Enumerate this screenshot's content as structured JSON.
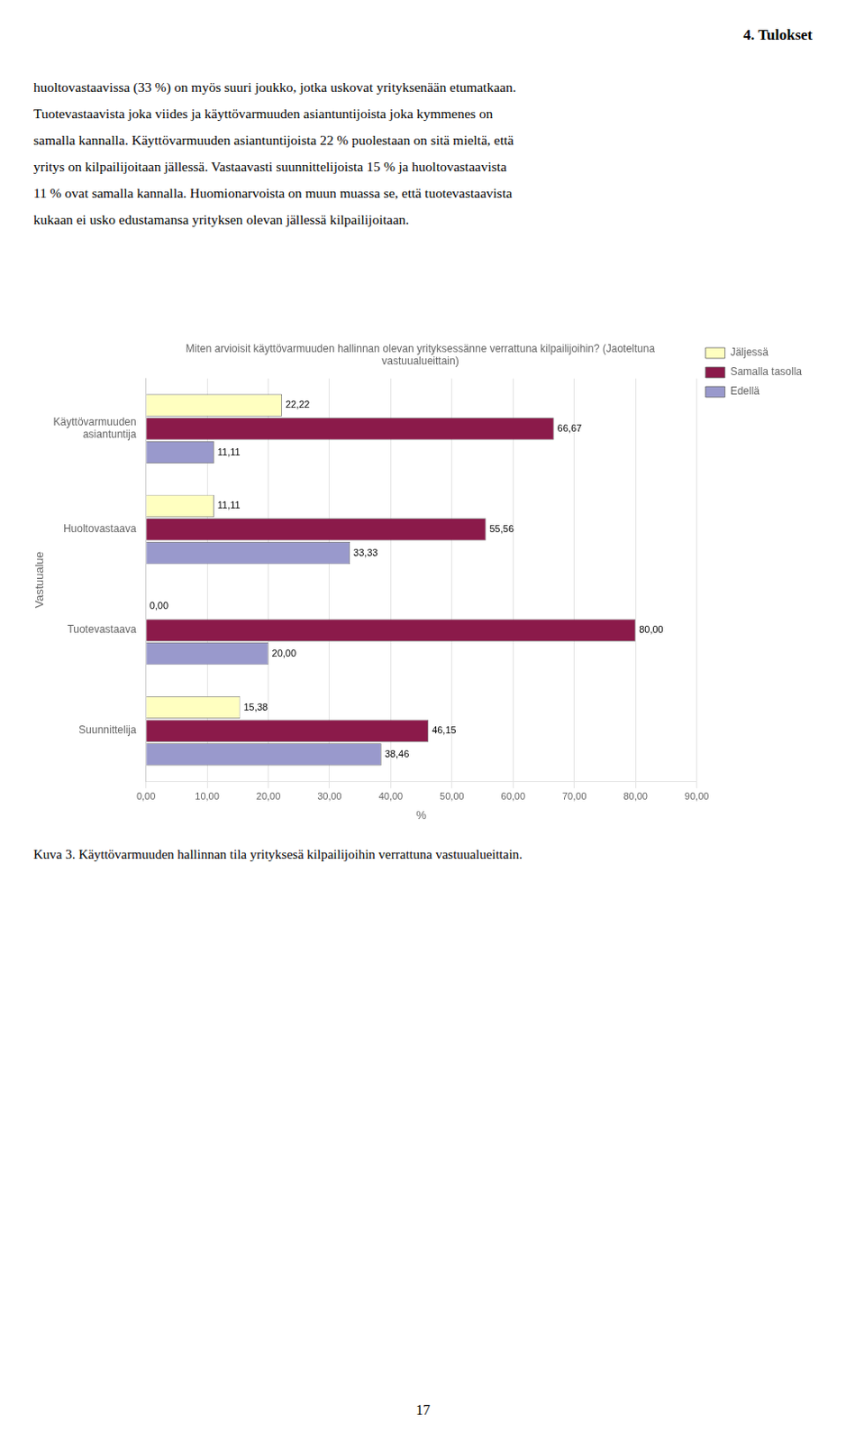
{
  "heading": "4. Tulokset",
  "body_lines": [
    "huoltovastaavissa (33 %) on myös suuri joukko, jotka uskovat yrityksenään etumatkaan.",
    "Tuotevastaavista joka viides ja käyttövarmuuden asiantuntijoista joka kymmenes on",
    "samalla kannalla. Käyttövarmuuden asiantuntijoista 22 % puolestaan on sitä mieltä, että",
    "yritys on kilpailijoitaan jällessä. Vastaavasti suunnittelijoista 15 % ja huoltovastaavista",
    "11 % ovat samalla kannalla. Huomionarvoista on muun muassa se, että tuotevastaavista",
    "kukaan ei usko edustamansa yrityksen olevan jällessä kilpailijoitaan."
  ],
  "caption": "Kuva 3. Käyttövarmuuden hallinnan tila yrityksesä kilpailijoihin verrattuna vastuualueittain.",
  "page_number": "17",
  "chart_data": {
    "type": "bar",
    "orientation": "horizontal",
    "title": "Miten arvioisit käyttövarmuuden hallinnan olevan yrityksessänne verrattuna kilpailijoihin? (Jaoteltuna\nvastuualueittain)",
    "xlabel": "%",
    "ylabel": "Vastuualue",
    "categories": [
      "Käyttövarmuuden\nasiantuntija",
      "Huoltovastaava",
      "Tuotevastaava",
      "Suunnittelija"
    ],
    "series": [
      {
        "name": "Jäljessä",
        "color": "#FFFFC0",
        "values": [
          22.22,
          11.11,
          0.0,
          15.38
        ],
        "value_labels": [
          "22,22",
          "11,11",
          "0,00",
          "15,38"
        ]
      },
      {
        "name": "Samalla tasolla",
        "color": "#8B1A4A",
        "values": [
          66.67,
          55.56,
          80.0,
          46.15
        ],
        "value_labels": [
          "66,67",
          "55,56",
          "80,00",
          "46,15"
        ]
      },
      {
        "name": "Edellä",
        "color": "#9999CC",
        "values": [
          11.11,
          33.33,
          20.0,
          38.46
        ],
        "value_labels": [
          "11,11",
          "33,33",
          "20,00",
          "38,46"
        ]
      }
    ],
    "xlim": [
      0,
      90
    ],
    "xticks": [
      {
        "value": 0,
        "label": "0,00"
      },
      {
        "value": 10,
        "label": "10,00"
      },
      {
        "value": 20,
        "label": "20,00"
      },
      {
        "value": 30,
        "label": "30,00"
      },
      {
        "value": 40,
        "label": "40,00"
      },
      {
        "value": 50,
        "label": "50,00"
      },
      {
        "value": 60,
        "label": "60,00"
      },
      {
        "value": 70,
        "label": "70,00"
      },
      {
        "value": 80,
        "label": "80,00"
      },
      {
        "value": 90,
        "label": "90,00"
      }
    ],
    "grid": true,
    "legend": "right",
    "data_labels": true
  }
}
